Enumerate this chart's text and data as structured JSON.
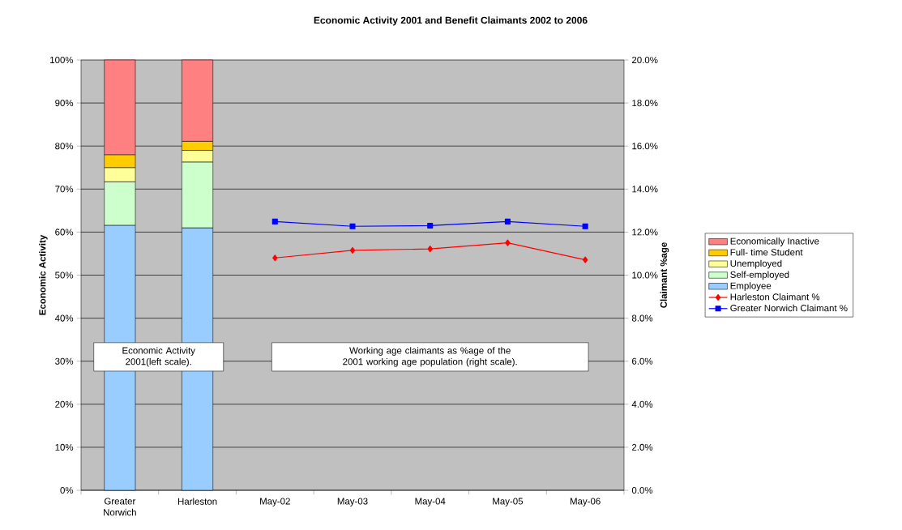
{
  "chart_data": {
    "type": "bar",
    "title": "Economic Activity 2001 and Benefit Claimants 2002 to 2006",
    "ylabel": "Economic Activity",
    "y2label": "Claimant %age",
    "categories": [
      "Greater Norwich",
      "Harleston",
      "May-02",
      "May-03",
      "May-04",
      "May-05",
      "May-06"
    ],
    "series": [
      {
        "name": "Employee",
        "color": "#99ccff",
        "values": [
          61.6,
          61.0,
          null,
          null,
          null,
          null,
          null
        ]
      },
      {
        "name": "Self-employed",
        "color": "#ccffcc",
        "values": [
          10.1,
          15.3,
          null,
          null,
          null,
          null,
          null
        ]
      },
      {
        "name": "Unemployed",
        "color": "#ffff99",
        "values": [
          3.3,
          2.7,
          null,
          null,
          null,
          null,
          null
        ]
      },
      {
        "name": "Full- time Student",
        "color": "#ffcc00",
        "values": [
          3.0,
          2.1,
          null,
          null,
          null,
          null,
          null
        ]
      },
      {
        "name": "Economically Inactive",
        "color": "#ff8080",
        "values": [
          22.0,
          18.9,
          null,
          null,
          null,
          null,
          null
        ]
      },
      {
        "name": "Harleston Claimant %",
        "type": "line",
        "axis": "y2",
        "marker": "diamond",
        "color": "#ff0000",
        "values": [
          null,
          null,
          10.8,
          11.15,
          11.22,
          11.5,
          10.71
        ]
      },
      {
        "name": "Greater Norwich Claimant %",
        "type": "line",
        "axis": "y2",
        "marker": "square",
        "color": "#0000ff",
        "values": [
          null,
          null,
          12.49,
          12.27,
          12.3,
          12.49,
          12.27
        ]
      }
    ],
    "stacked": true,
    "ylim": [
      0,
      100
    ],
    "yticks": [
      {
        "value": 0,
        "label": "0%"
      },
      {
        "value": 10,
        "label": "10%"
      },
      {
        "value": 20,
        "label": "20%"
      },
      {
        "value": 30,
        "label": "30%"
      },
      {
        "value": 40,
        "label": "40%"
      },
      {
        "value": 50,
        "label": "50%"
      },
      {
        "value": 60,
        "label": "60%"
      },
      {
        "value": 70,
        "label": "70%"
      },
      {
        "value": 80,
        "label": "80%"
      },
      {
        "value": 90,
        "label": "90%"
      },
      {
        "value": 100,
        "label": "100%"
      }
    ],
    "y2lim": [
      0,
      20
    ],
    "y2ticks": [
      {
        "value": 0,
        "label": "0.0%"
      },
      {
        "value": 2,
        "label": "2.0%"
      },
      {
        "value": 4,
        "label": "4.0%"
      },
      {
        "value": 6,
        "label": "6.0%"
      },
      {
        "value": 8,
        "label": "8.0%"
      },
      {
        "value": 10,
        "label": "10.0%"
      },
      {
        "value": 12,
        "label": "12.0%"
      },
      {
        "value": 14,
        "label": "14.0%"
      },
      {
        "value": 16,
        "label": "16.0%"
      },
      {
        "value": 18,
        "label": "18.0%"
      },
      {
        "value": 20,
        "label": "20.0%"
      }
    ],
    "grid": "y",
    "legend": "right",
    "annotations": [
      "Economic Activity 2001(left scale).",
      "Working age claimants as %age of the 2001 working age population (right scale)."
    ]
  }
}
